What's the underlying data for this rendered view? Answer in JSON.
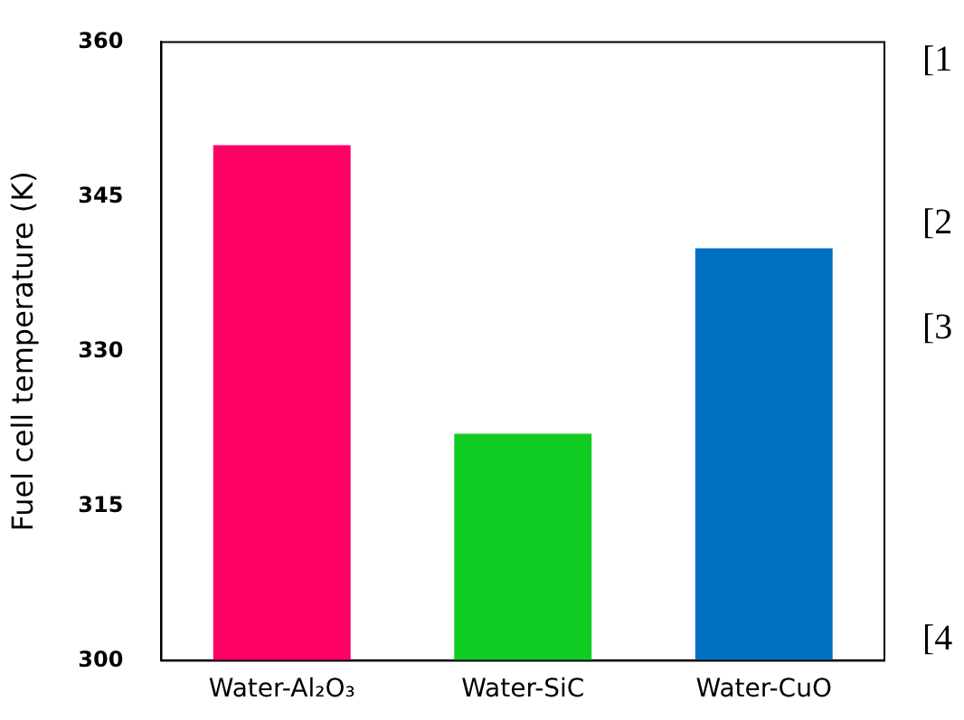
{
  "chart_data": {
    "type": "bar",
    "ylabel": "Fuel cell temperature (K)",
    "categories": [
      "Water-Al₂O₃",
      "Water-SiC",
      "Water-CuO"
    ],
    "values": [
      350,
      322,
      340
    ],
    "colors": [
      "#ff0066",
      "#11cc22",
      "#0070c0"
    ],
    "ylim": [
      300,
      360
    ],
    "yticks": [
      300,
      315,
      330,
      345,
      360
    ],
    "grid": false,
    "legend": false,
    "annotations": [
      "[1",
      "[2",
      "[3",
      "[4"
    ]
  }
}
